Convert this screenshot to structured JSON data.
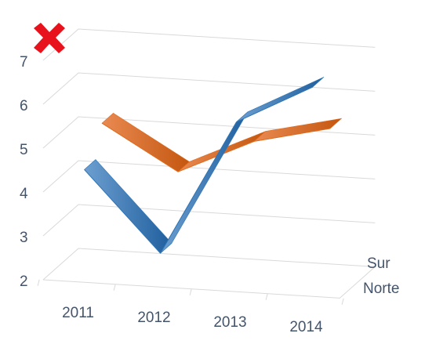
{
  "chart_data": {
    "type": "line",
    "style": "3d-ribbon",
    "categories": [
      "2011",
      "2012",
      "2013",
      "2014"
    ],
    "y_ticks": [
      "2",
      "3",
      "4",
      "5",
      "6",
      "7"
    ],
    "ylim": [
      2,
      7
    ],
    "depth_labels": [
      "Sur",
      "Norte"
    ],
    "series": [
      {
        "name": "Norte",
        "color": "#2e75b6",
        "values": [
          4.5,
          2.7,
          5.8,
          6.7
        ]
      },
      {
        "name": "Sur",
        "color": "#e06c1f",
        "values": [
          5.2,
          4.2,
          5.0,
          5.4
        ]
      }
    ],
    "grid": true,
    "error_icon": "close-icon"
  }
}
